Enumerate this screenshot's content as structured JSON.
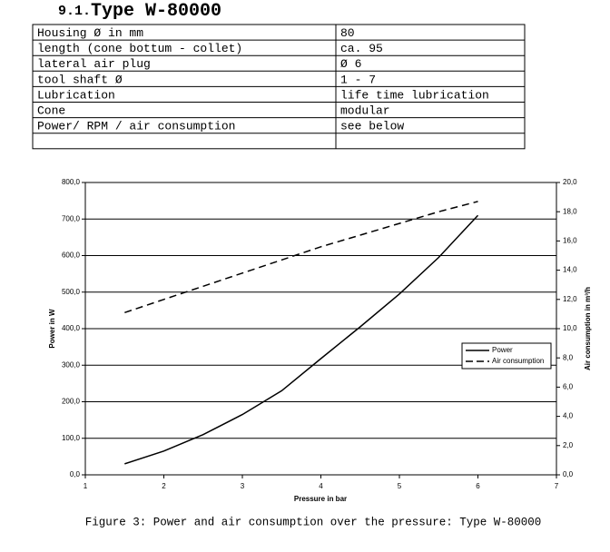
{
  "heading": {
    "number": "9.1.",
    "title": "Type W-80000"
  },
  "table": {
    "rows": [
      [
        "Housing Ø in mm",
        "80"
      ],
      [
        "length (cone bottum - collet)",
        "ca. 95"
      ],
      [
        "lateral air plug",
        "Ø 6"
      ],
      [
        "tool shaft Ø",
        "1 - 7"
      ],
      [
        "Lubrication",
        "life time lubrication"
      ],
      [
        "Cone",
        "modular"
      ],
      [
        "Power/ RPM / air consumption",
        "see below"
      ]
    ]
  },
  "chart_data": {
    "type": "line",
    "x_label": "Pressure in bar",
    "y_label": "Power in W",
    "y2_label": "Air consumption in m³/h",
    "x": [
      1.5,
      2,
      2.5,
      3,
      3.5,
      4,
      4.5,
      5,
      5.5,
      6
    ],
    "series": [
      {
        "name": "Power",
        "color": "#000000",
        "line_style": "solid",
        "values": [
          30,
          65,
          110,
          165,
          230,
          318,
          405,
          495,
          595,
          710
        ]
      },
      {
        "name": "Air consumption",
        "color": "#000000",
        "line_style": "dashed",
        "axis": "y2",
        "values": [
          11.1,
          12.0,
          12.9,
          13.8,
          14.7,
          15.6,
          16.4,
          17.2,
          18.0,
          18.7
        ]
      }
    ],
    "xlim": [
      1,
      7
    ],
    "xticks": [
      1,
      2,
      3,
      4,
      5,
      6,
      7
    ],
    "ylim": [
      0,
      800
    ],
    "yticks": [
      {
        "value": 0,
        "label": "0,0"
      },
      {
        "value": 100,
        "label": "100,0"
      },
      {
        "value": 200,
        "label": "200,0"
      },
      {
        "value": 300,
        "label": "300,0"
      },
      {
        "value": 400,
        "label": "400,0"
      },
      {
        "value": 500,
        "label": "500,0"
      },
      {
        "value": 600,
        "label": "600,0"
      },
      {
        "value": 700,
        "label": "700,0"
      },
      {
        "value": 800,
        "label": "800,0"
      }
    ],
    "y2lim": [
      0,
      20
    ],
    "y2ticks": [
      {
        "value": 0,
        "label": "0,0"
      },
      {
        "value": 2,
        "label": "2,0"
      },
      {
        "value": 4,
        "label": "4,0"
      },
      {
        "value": 6,
        "label": "6,0"
      },
      {
        "value": 8,
        "label": "8,0"
      },
      {
        "value": 10,
        "label": "10,0"
      },
      {
        "value": 12,
        "label": "12,0"
      },
      {
        "value": 14,
        "label": "14,0"
      },
      {
        "value": 16,
        "label": "16,0"
      },
      {
        "value": 18,
        "label": "18,0"
      },
      {
        "value": 20,
        "label": "20,0"
      }
    ],
    "grid": true,
    "legend": "right"
  },
  "caption": "Figure 3: Power and air consumption over the pressure: Type W-80000"
}
